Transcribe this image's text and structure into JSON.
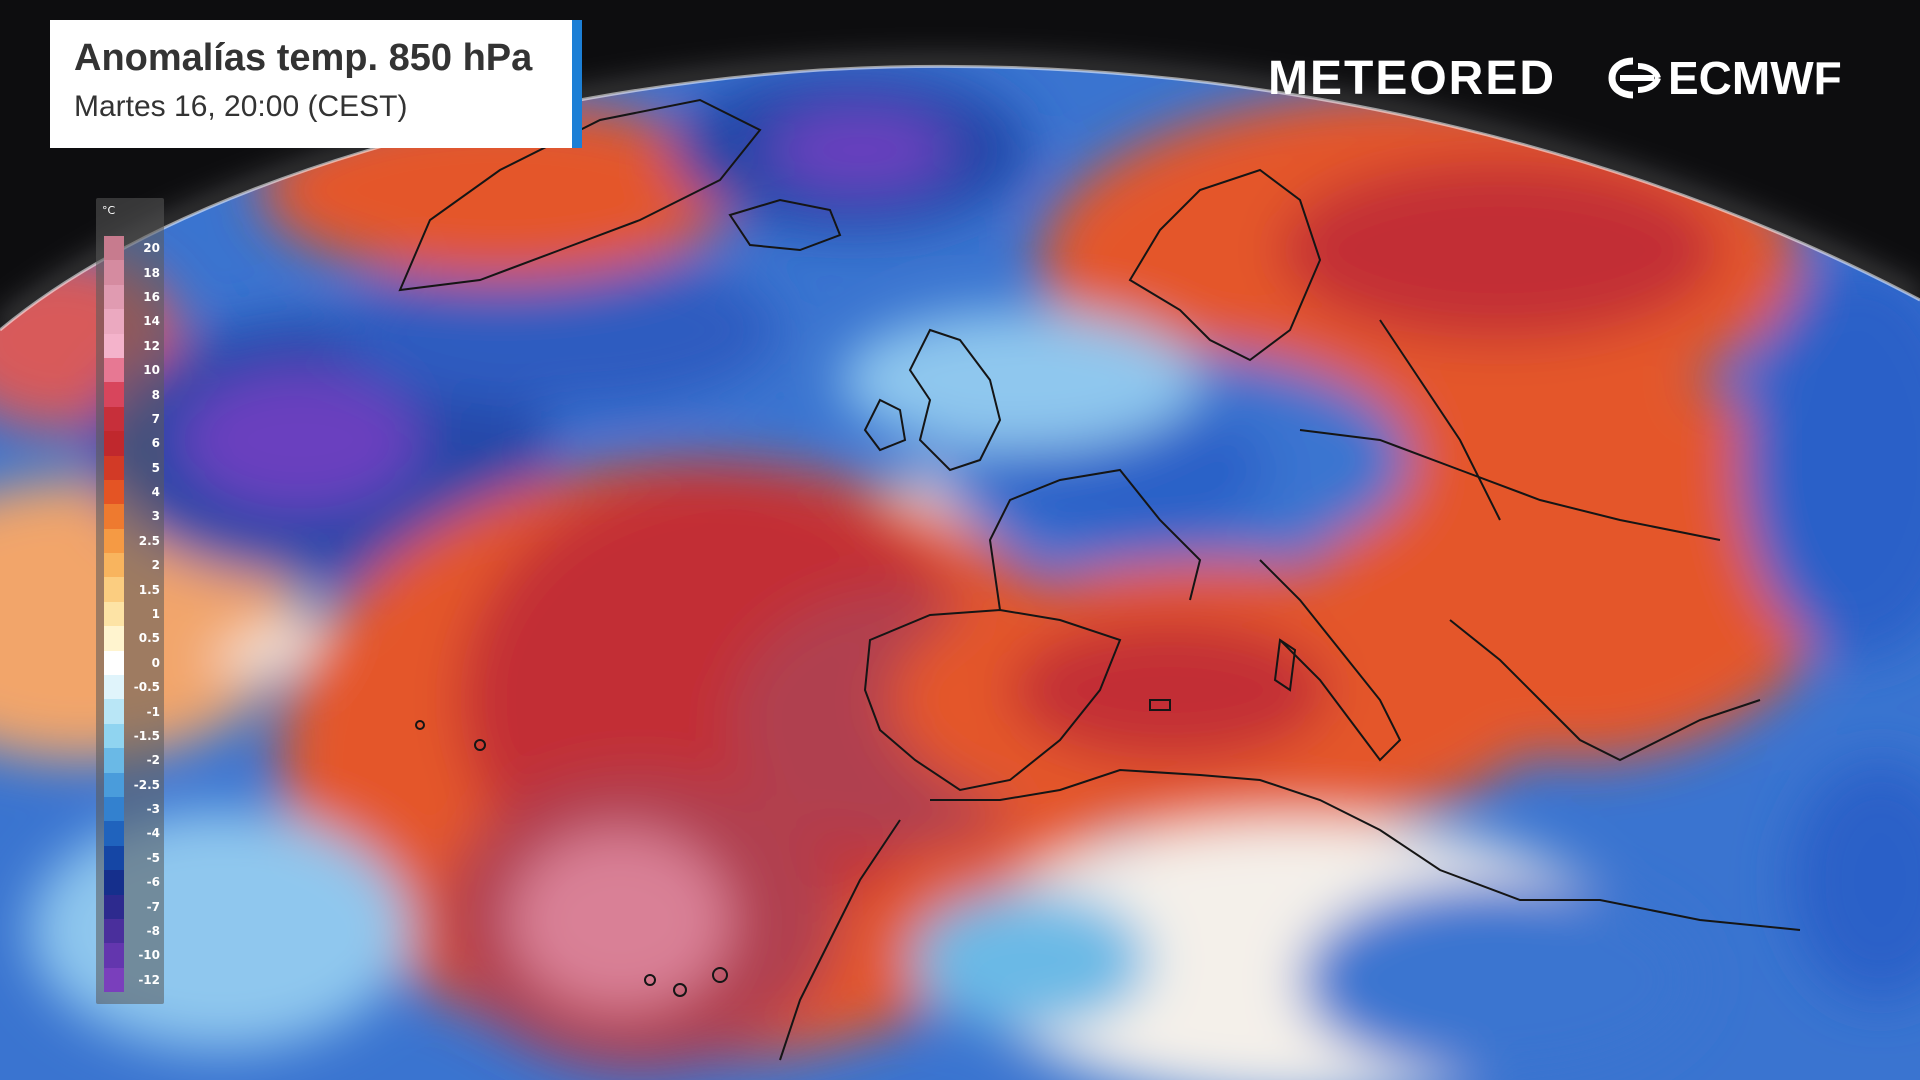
{
  "header": {
    "title": "Anomalías temp. 850 hPa",
    "subtitle": "Martes 16, 20:00 (CEST)"
  },
  "brands": {
    "meteored": "METEORED",
    "ecmwf": "ECMWF"
  },
  "legend": {
    "unit": "°C",
    "labels": [
      "20",
      "18",
      "16",
      "14",
      "12",
      "10",
      "8",
      "7",
      "6",
      "5",
      "4",
      "3",
      "2.5",
      "2",
      "1.5",
      "1",
      "0.5",
      "0",
      "-0.5",
      "-1",
      "-1.5",
      "-2",
      "-2.5",
      "-3",
      "-4",
      "-5",
      "-6",
      "-7",
      "-8",
      "-10",
      "-12"
    ],
    "colors": [
      "#c77b8e",
      "#d58ba0",
      "#e09bb1",
      "#eba9c0",
      "#f4b3cb",
      "#e77893",
      "#d8455c",
      "#c72f3a",
      "#c0282d",
      "#d23a26",
      "#e45424",
      "#ee7a2f",
      "#f59a44",
      "#f8b45e",
      "#fbcd80",
      "#fde3a5",
      "#fff4cf",
      "#ffffff",
      "#e0f4fb",
      "#b9e6f6",
      "#90d4f0",
      "#6ab9e6",
      "#4a9cdb",
      "#3381cf",
      "#2063bd",
      "#1546a5",
      "#152f8c",
      "#2d2a8e",
      "#4a2f9c",
      "#6336ae",
      "#7a3fbc"
    ]
  },
  "map_colors": {
    "background": "#0d0d0f",
    "ocean_cold": "#3a74d0",
    "deep_cold": "#2446a8",
    "purple": "#6a3fbf",
    "warm": "#e4562a",
    "hot": "#c22e34",
    "very_hot": "#b0404f",
    "pink": "#d98096",
    "neutral": "#f4f0ea",
    "coastline": "#151515"
  }
}
